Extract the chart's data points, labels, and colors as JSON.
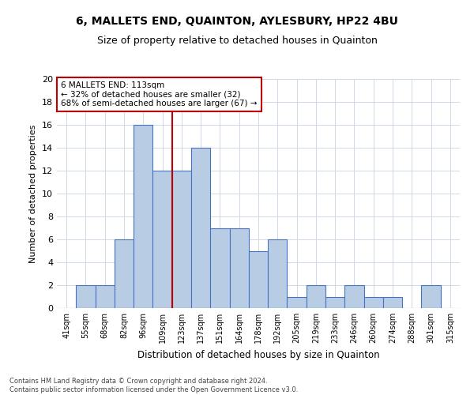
{
  "title": "6, MALLETS END, QUAINTON, AYLESBURY, HP22 4BU",
  "subtitle": "Size of property relative to detached houses in Quainton",
  "xlabel": "Distribution of detached houses by size in Quainton",
  "ylabel": "Number of detached properties",
  "categories": [
    "41sqm",
    "55sqm",
    "68sqm",
    "82sqm",
    "96sqm",
    "109sqm",
    "123sqm",
    "137sqm",
    "151sqm",
    "164sqm",
    "178sqm",
    "192sqm",
    "205sqm",
    "219sqm",
    "233sqm",
    "246sqm",
    "260sqm",
    "274sqm",
    "288sqm",
    "301sqm",
    "315sqm"
  ],
  "values": [
    0,
    2,
    2,
    6,
    16,
    12,
    12,
    14,
    7,
    7,
    5,
    6,
    1,
    2,
    1,
    2,
    1,
    1,
    0,
    2,
    0
  ],
  "bar_color": "#b8cce4",
  "bar_edge_color": "#4472c4",
  "vline_x": 5.5,
  "vline_color": "#c00000",
  "annotation_text": "6 MALLETS END: 113sqm\n← 32% of detached houses are smaller (32)\n68% of semi-detached houses are larger (67) →",
  "annotation_box_color": "#ffffff",
  "annotation_box_edge": "#c00000",
  "ylim": [
    0,
    20
  ],
  "yticks": [
    0,
    2,
    4,
    6,
    8,
    10,
    12,
    14,
    16,
    18,
    20
  ],
  "footer": "Contains HM Land Registry data © Crown copyright and database right 2024.\nContains public sector information licensed under the Open Government Licence v3.0.",
  "background_color": "#ffffff",
  "grid_color": "#d0d8e8",
  "title_fontsize": 10,
  "subtitle_fontsize": 9,
  "ylabel_fontsize": 8,
  "xlabel_fontsize": 8.5,
  "tick_fontsize": 7,
  "annotation_fontsize": 7.5,
  "footer_fontsize": 6
}
